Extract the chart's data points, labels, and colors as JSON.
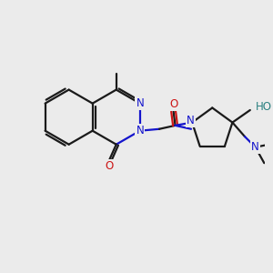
{
  "bg_color": "#ebebeb",
  "bond_color": "#1a1a1a",
  "n_color": "#1414cc",
  "o_color": "#cc1414",
  "ho_color": "#2a8080",
  "line_width": 1.6,
  "font_size": 8.5
}
